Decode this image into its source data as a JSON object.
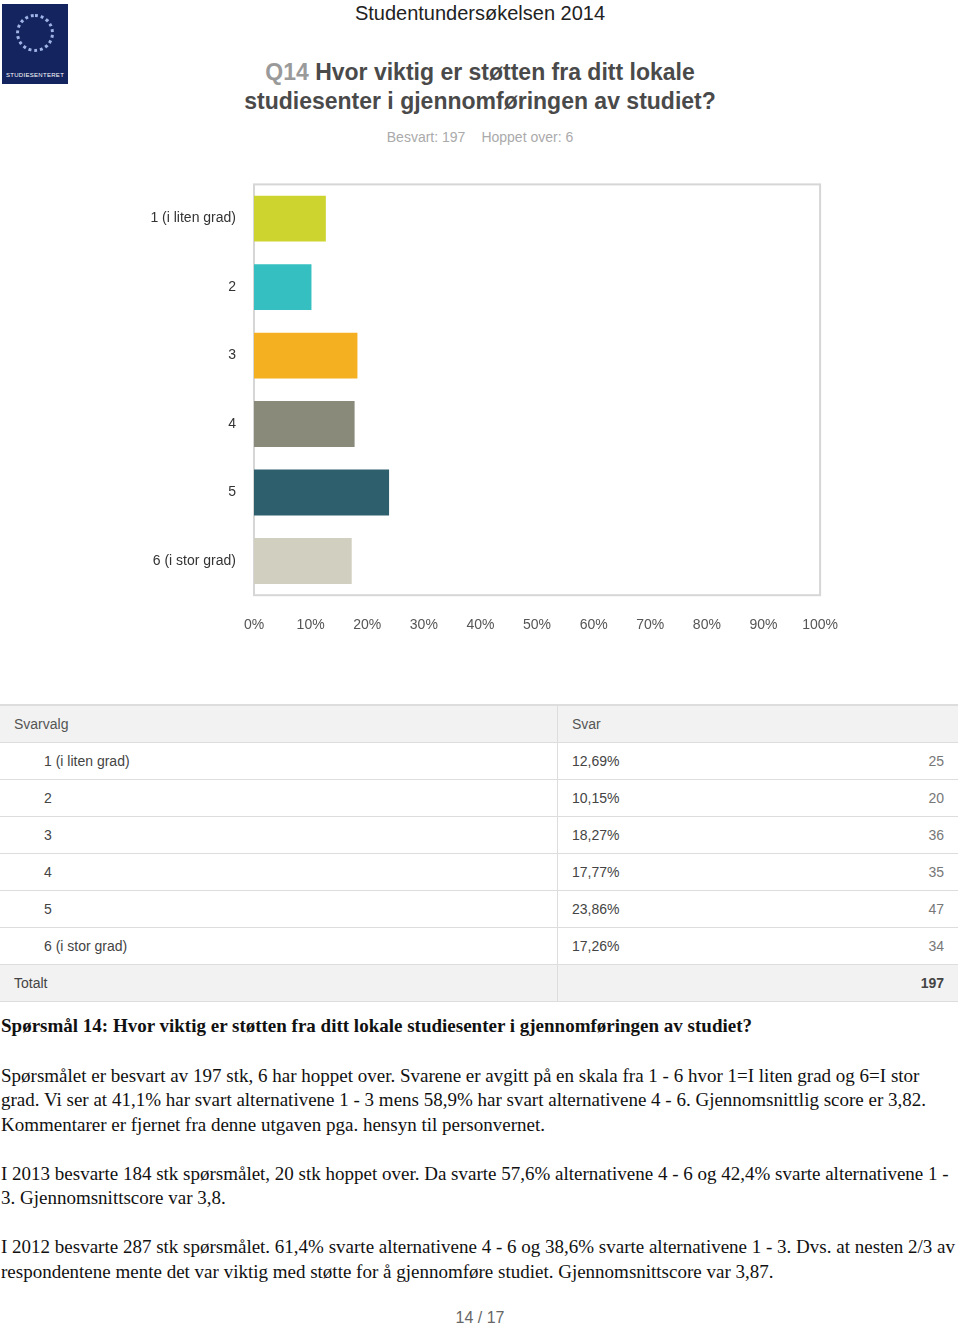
{
  "header": {
    "logo_text": "STUDIESENTERET",
    "title": "Studentundersøkelsen 2014"
  },
  "question": {
    "number": "Q14",
    "title_lines": [
      "Hvor viktig er støtten fra ditt lokale",
      "studiesenter i gjennomføringen av studiet?"
    ],
    "answered": "Besvart: 197",
    "skipped": "Hoppet over: 6"
  },
  "chart_data": {
    "type": "bar",
    "orientation": "horizontal",
    "categories": [
      "1 (i liten grad)",
      "2",
      "3",
      "4",
      "5",
      "6 (i stor grad)"
    ],
    "values": [
      12.69,
      10.15,
      18.27,
      17.77,
      23.86,
      17.26
    ],
    "colors": [
      "#cdd42f",
      "#36bfc1",
      "#f5b021",
      "#8a8a7b",
      "#2e5f6c",
      "#d1cfc0"
    ],
    "xlim": [
      0,
      100
    ],
    "xticks": [
      {
        "value": 0,
        "label": "0%"
      },
      {
        "value": 10,
        "label": "10%"
      },
      {
        "value": 20,
        "label": "20%"
      },
      {
        "value": 30,
        "label": "30%"
      },
      {
        "value": 40,
        "label": "40%"
      },
      {
        "value": 50,
        "label": "50%"
      },
      {
        "value": 60,
        "label": "60%"
      },
      {
        "value": 70,
        "label": "70%"
      },
      {
        "value": 80,
        "label": "80%"
      },
      {
        "value": 90,
        "label": "90%"
      },
      {
        "value": 100,
        "label": "100%"
      }
    ],
    "grid": false
  },
  "table": {
    "header": [
      "Svarvalg",
      "Svar"
    ],
    "rows": [
      [
        "1 (i liten grad)",
        "12,69%",
        25
      ],
      [
        "2",
        "10,15%",
        20
      ],
      [
        "3",
        "18,27%",
        36
      ],
      [
        "4",
        "17,77%",
        35
      ],
      [
        "5",
        "23,86%",
        47
      ],
      [
        "6 (i stor grad)",
        "17,26%",
        34
      ]
    ],
    "total": [
      "Totalt",
      197
    ]
  },
  "text": {
    "heading": "Spørsmål 14: Hvor viktig er støtten fra ditt lokale studiesenter i gjennomføringen av studiet?",
    "paragraphs": [
      "Spørsmålet er besvart av 197 stk, 6 har hoppet over. Svarene er avgitt på en skala fra 1 - 6 hvor 1=I liten grad og 6=I stor grad. Vi ser at 41,1% har svart alternativene 1 - 3 mens 58,9% har svart alternativene 4 - 6. Gjennomsnittlig score er 3,82. Kommentarer er fjernet fra denne utgaven pga. hensyn til personvernet.",
      "I 2013 besvarte 184 stk spørsmålet, 20 stk hoppet over. Da svarte 57,6% alternativene 4 - 6 og 42,4% svarte alternativene 1 - 3. Gjennomsnittscore var 3,8.",
      "I 2012 besvarte 287 stk spørsmålet. 61,4% svarte alternativene 4 - 6 og 38,6% svarte alternativene 1 - 3. Dvs. at nesten 2/3 av respondentene mente det var viktig med støtte for å gjennomføre studiet. Gjennomsnittscore var 3,87."
    ]
  },
  "footer": {
    "page": "14 / 17"
  }
}
